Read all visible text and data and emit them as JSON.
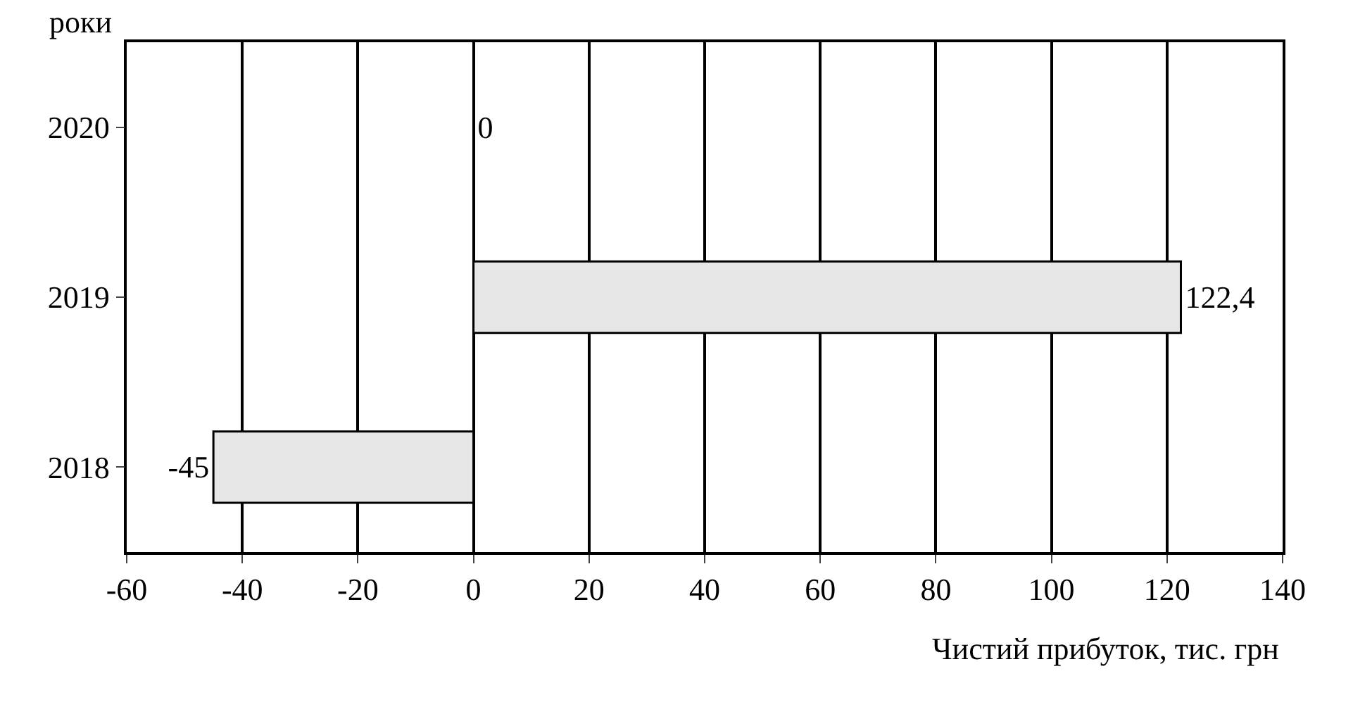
{
  "chart_data": {
    "type": "bar",
    "orientation": "horizontal",
    "categories": [
      "2020",
      "2019",
      "2018"
    ],
    "values": [
      0,
      122.4,
      -45
    ],
    "value_labels": [
      "0",
      "122,4",
      "-45"
    ],
    "color": "#e6e6e6",
    "xlim": [
      -60,
      140
    ],
    "xticks": [
      -60,
      -40,
      -20,
      0,
      20,
      40,
      60,
      80,
      100,
      120,
      140
    ],
    "grid": "x",
    "legend": false,
    "ylabel": "роки",
    "xlabel": "Чистий прибуток, тис. грн"
  }
}
